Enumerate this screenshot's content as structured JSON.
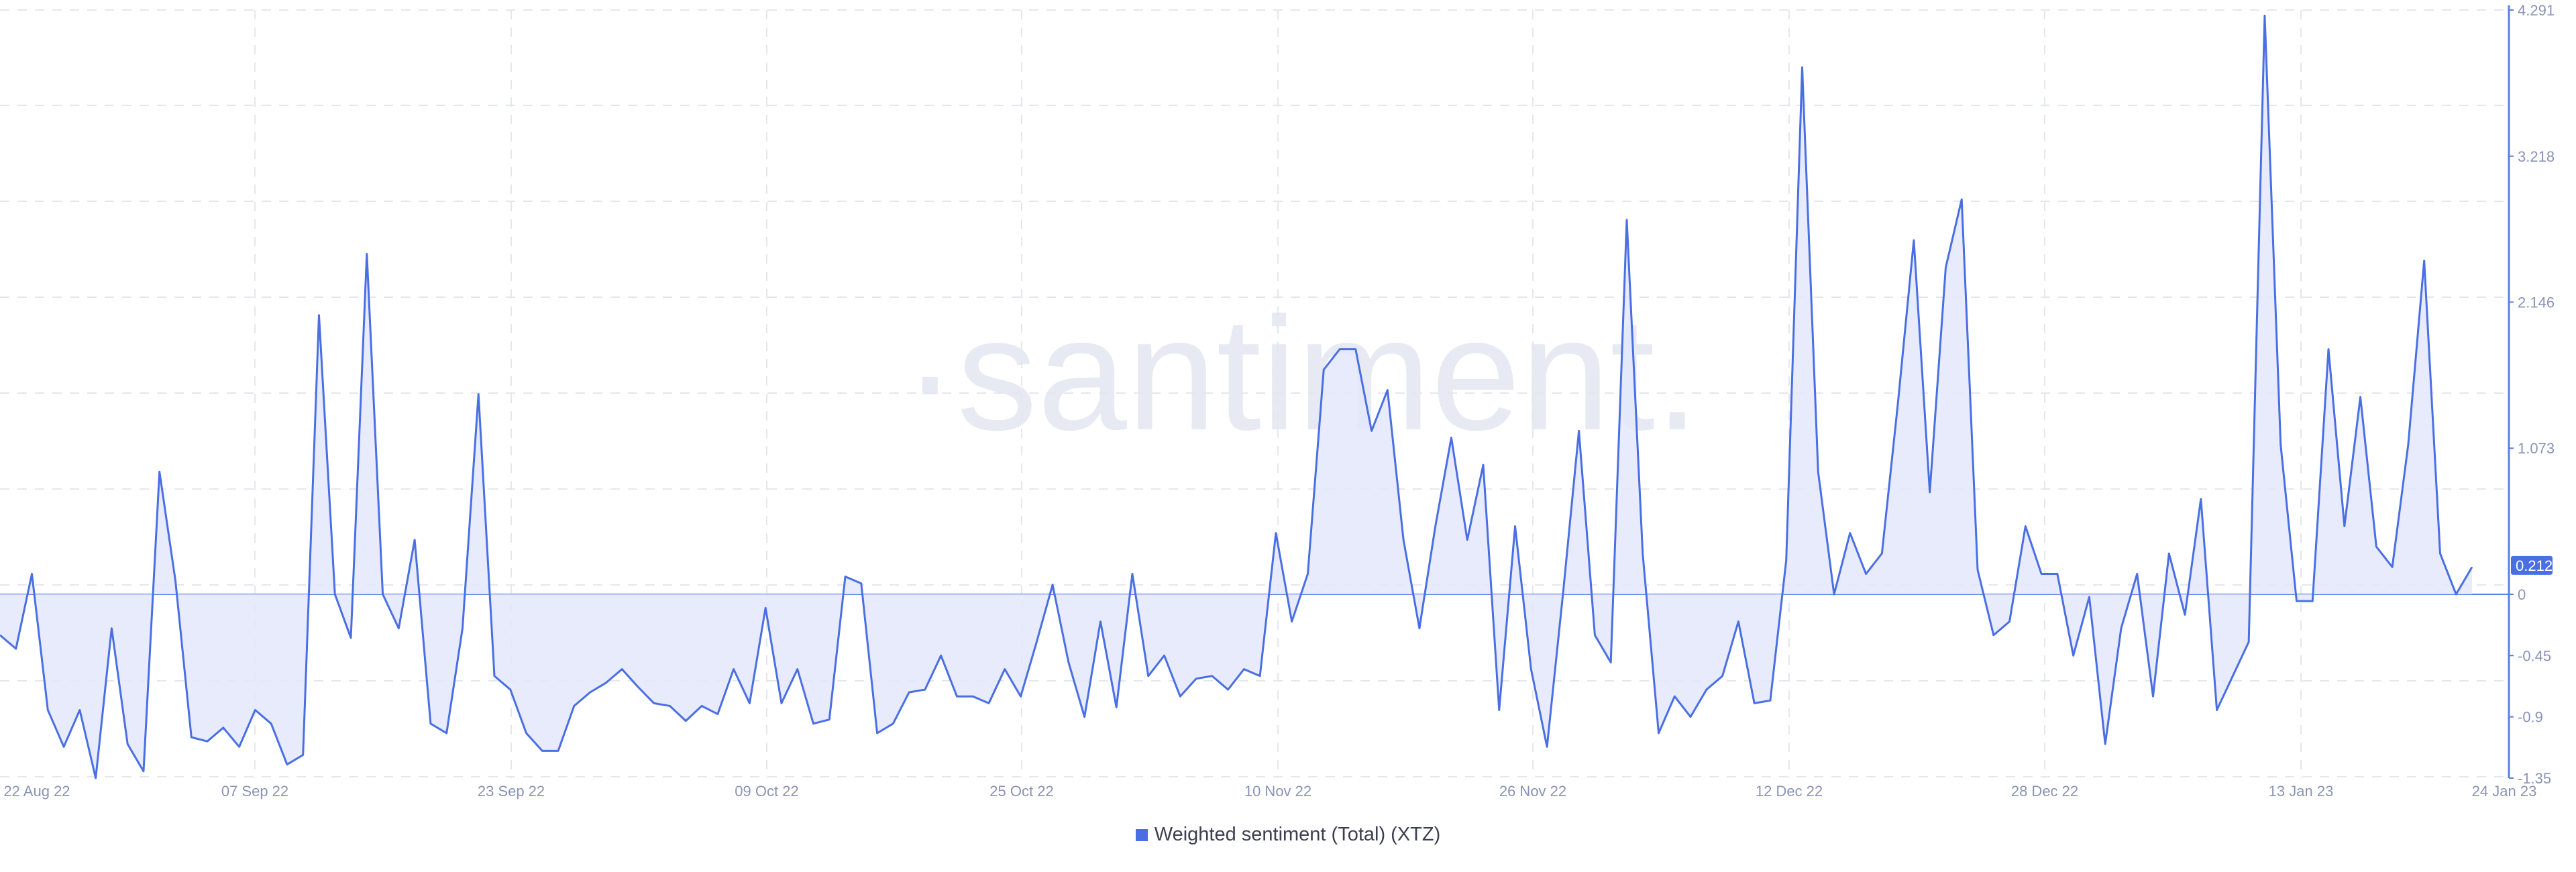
{
  "chart_data": {
    "type": "area",
    "title": "",
    "xlabel": "",
    "ylabel": "",
    "watermark": "·santiment.",
    "x_tick_labels": [
      "22 Aug 22",
      "07 Sep 22",
      "23 Sep 22",
      "09 Oct 22",
      "25 Oct 22",
      "10 Nov 22",
      "26 Nov 22",
      "12 Dec 22",
      "28 Dec 22",
      "13 Jan 23",
      "24 Jan 23"
    ],
    "y_tick_labels": [
      "4.291",
      "3.218",
      "2.146",
      "1.073",
      "0",
      "-0.45",
      "-0.9",
      "-1.35"
    ],
    "ylim": [
      -1.35,
      4.291
    ],
    "grid": true,
    "current_value": "0.212",
    "legend_position": "bottom-center",
    "series": [
      {
        "name": "Weighted sentiment (Total) (XTZ)",
        "color": "#4a6fe3",
        "fill": "#e3e8fb",
        "values": [
          -0.3,
          -0.4,
          0.15,
          -0.85,
          -1.12,
          -0.85,
          -1.35,
          -0.25,
          -1.1,
          -1.3,
          0.9,
          0.1,
          -1.05,
          -1.08,
          -0.98,
          -1.12,
          -0.85,
          -0.95,
          -1.25,
          -1.18,
          2.05,
          0.0,
          -0.32,
          2.5,
          0.0,
          -0.25,
          0.4,
          -0.95,
          -1.02,
          -0.25,
          1.47,
          -0.6,
          -0.7,
          -1.02,
          -1.15,
          -1.15,
          -0.82,
          -0.72,
          -0.65,
          -0.55,
          -0.68,
          -0.8,
          -0.82,
          -0.93,
          -0.82,
          -0.88,
          -0.55,
          -0.8,
          -0.1,
          -0.8,
          -0.55,
          -0.95,
          -0.92,
          0.13,
          0.08,
          -1.02,
          -0.95,
          -0.72,
          -0.7,
          -0.45,
          -0.75,
          -0.75,
          -0.8,
          -0.55,
          -0.75,
          -0.35,
          0.07,
          -0.5,
          -0.9,
          -0.2,
          -0.83,
          0.15,
          -0.6,
          -0.45,
          -0.75,
          -0.62,
          -0.6,
          -0.7,
          -0.55,
          -0.6,
          0.45,
          -0.2,
          0.15,
          1.65,
          1.8,
          1.8,
          1.2,
          1.5,
          0.4,
          -0.25,
          0.5,
          1.15,
          0.4,
          0.95,
          -0.85,
          0.5,
          -0.55,
          -1.12,
          0.0,
          1.2,
          -0.3,
          -0.5,
          2.75,
          0.3,
          -1.02,
          -0.75,
          -0.9,
          -0.7,
          -0.6,
          -0.2,
          -0.8,
          -0.78,
          0.25,
          3.87,
          0.9,
          0.0,
          0.45,
          0.15,
          0.3,
          1.4,
          2.6,
          0.75,
          2.4,
          2.9,
          0.18,
          -0.3,
          -0.2,
          0.5,
          0.15,
          0.15,
          -0.45,
          -0.02,
          -1.1,
          -0.25,
          0.15,
          -0.75,
          0.3,
          -0.15,
          0.7,
          -0.85,
          -0.6,
          -0.35,
          4.25,
          1.1,
          -0.05,
          -0.05,
          1.8,
          0.5,
          1.45,
          0.35,
          0.2,
          1.1,
          2.45,
          0.3,
          0.0,
          0.2
        ]
      }
    ]
  }
}
